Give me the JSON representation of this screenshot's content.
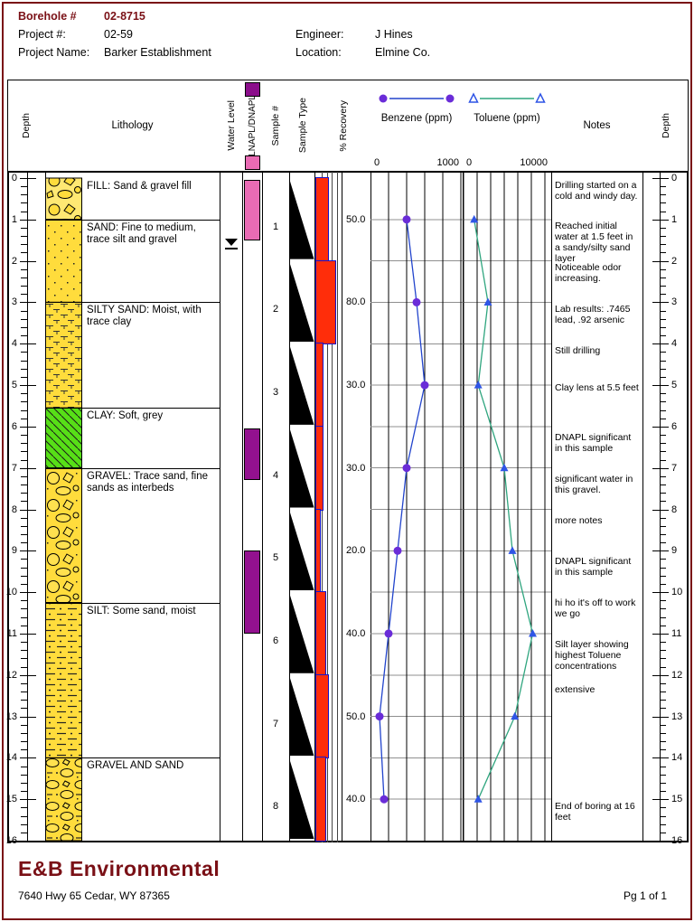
{
  "header": {
    "borehole_label": "Borehole #",
    "borehole_value": "02-8715",
    "project_num_label": "Project #:",
    "project_num_value": "02-59",
    "project_name_label": "Project Name:",
    "project_name_value": "Barker Establishment",
    "engineer_label": "Engineer:",
    "engineer_value": "J Hines",
    "location_label": "Location:",
    "location_value": "Elmine Co."
  },
  "columns": {
    "depth_left": "Depth",
    "lithology": "Lithology",
    "water_level": "Water Level",
    "napl": "LNAPL/DNAPL",
    "sample_num": "Sample #",
    "sample_type": "Sample Type",
    "recovery": "% Recovery",
    "benzene": {
      "name": "Benzene (ppm)",
      "min": "0",
      "max": "1000"
    },
    "toluene": {
      "name": "Toluene (ppm)",
      "min": "0",
      "max": "10000"
    },
    "notes": "Notes",
    "depth_right": "Depth"
  },
  "depth_axis": {
    "min_ft": 0,
    "max_ft": 16,
    "major_tick_ft": 1,
    "minor_tick_ft": 0.2,
    "tick_labels": [
      "0",
      "1",
      "2",
      "3",
      "4",
      "5",
      "6",
      "7",
      "8",
      "9",
      "10",
      "11",
      "12",
      "13",
      "14",
      "15",
      "16"
    ]
  },
  "lithology_layers": [
    {
      "top_ft": 0,
      "bottom_ft": 1,
      "pattern": "fill",
      "label": "FILL: Sand & gravel fill"
    },
    {
      "top_ft": 1,
      "bottom_ft": 3,
      "pattern": "sand",
      "label": "SAND: Fine to medium, trace silt and gravel"
    },
    {
      "top_ft": 3,
      "bottom_ft": 5.55,
      "pattern": "siltysand",
      "label": "SILTY SAND: Moist, with trace clay"
    },
    {
      "top_ft": 5.55,
      "bottom_ft": 7,
      "pattern": "clay",
      "label": "CLAY: Soft, grey"
    },
    {
      "top_ft": 7,
      "bottom_ft": 10.25,
      "pattern": "gravel",
      "label": "GRAVEL: Trace sand, fine sands as interbeds"
    },
    {
      "top_ft": 10.25,
      "bottom_ft": 14,
      "pattern": "silt",
      "label": "SILT: Some sand, moist"
    },
    {
      "top_ft": 14,
      "bottom_ft": 16,
      "pattern": "gravelsand",
      "label": "GRAVEL AND SAND"
    }
  ],
  "water_level_depth_ft": 1.55,
  "napl_intervals": [
    {
      "type": "LNAPL",
      "top_ft": 0.05,
      "bottom_ft": 1.5
    },
    {
      "type": "DNAPL",
      "top_ft": 6.05,
      "bottom_ft": 7.3
    },
    {
      "type": "DNAPL",
      "top_ft": 9.0,
      "bottom_ft": 11.0
    }
  ],
  "samples": [
    {
      "num": "1",
      "top_ft": 0,
      "bottom_ft": 2,
      "recovery_pct": 50,
      "recovery_label": "50.0"
    },
    {
      "num": "2",
      "top_ft": 2,
      "bottom_ft": 4,
      "recovery_pct": 80,
      "recovery_label": "80.0"
    },
    {
      "num": "3",
      "top_ft": 4,
      "bottom_ft": 6,
      "recovery_pct": 30,
      "recovery_label": "30.0"
    },
    {
      "num": "4",
      "top_ft": 6,
      "bottom_ft": 8,
      "recovery_pct": 30,
      "recovery_label": "30.0"
    },
    {
      "num": "5",
      "top_ft": 8,
      "bottom_ft": 10,
      "recovery_pct": 20,
      "recovery_label": "20.0"
    },
    {
      "num": "6",
      "top_ft": 10,
      "bottom_ft": 12,
      "recovery_pct": 40,
      "recovery_label": "40.0"
    },
    {
      "num": "7",
      "top_ft": 12,
      "bottom_ft": 14,
      "recovery_pct": 50,
      "recovery_label": "50.0"
    },
    {
      "num": "8",
      "top_ft": 14,
      "bottom_ft": 16,
      "recovery_pct": 40,
      "recovery_label": "40.0"
    }
  ],
  "notes": [
    {
      "depth_ft": 0.1,
      "text": "Drilling started on a cold and windy day."
    },
    {
      "depth_ft": 1.1,
      "text": "Reached initial water at 1.5 feet in a sandy/silty sand layer"
    },
    {
      "depth_ft": 2.1,
      "text": "Noticeable odor increasing."
    },
    {
      "depth_ft": 3.1,
      "text": "Lab results: .7465 lead, .92 arsenic"
    },
    {
      "depth_ft": 4.1,
      "text": "Still drilling"
    },
    {
      "depth_ft": 5.0,
      "text": "Clay lens at 5.5 feet"
    },
    {
      "depth_ft": 6.2,
      "text": "DNAPL significant in this sample"
    },
    {
      "depth_ft": 7.2,
      "text": "significant water in this gravel."
    },
    {
      "depth_ft": 8.2,
      "text": "more notes"
    },
    {
      "depth_ft": 9.2,
      "text": "DNAPL significant in this sample"
    },
    {
      "depth_ft": 10.2,
      "text": "hi ho it's off to work we go"
    },
    {
      "depth_ft": 11.2,
      "text": "Silt layer showing highest Toluene concentrations"
    },
    {
      "depth_ft": 12.3,
      "text": "extensive"
    },
    {
      "depth_ft": 15.1,
      "text": "End of boring at 16 feet"
    }
  ],
  "chart_data": [
    {
      "type": "line",
      "title": "Benzene (ppm)",
      "orientation": "depth-profile",
      "depths_ft": [
        1,
        3,
        5,
        7,
        9,
        11,
        13,
        15
      ],
      "values_ppm": [
        400,
        510,
        600,
        400,
        300,
        200,
        100,
        150
      ],
      "axis_range": [
        0,
        1000
      ],
      "marker": "circle",
      "grid": true
    },
    {
      "type": "line",
      "title": "Toluene (ppm)",
      "orientation": "depth-profile",
      "depths_ft": [
        1,
        3,
        5,
        7,
        9,
        11,
        13,
        15
      ],
      "values_ppm": [
        1300,
        3000,
        1800,
        5000,
        6000,
        8500,
        6300,
        1800
      ],
      "axis_range": [
        0,
        10000
      ],
      "marker": "triangle",
      "grid": true
    },
    {
      "type": "bar",
      "title": "% Recovery",
      "orientation": "depth-profile",
      "depth_intervals_ft": [
        [
          0,
          2
        ],
        [
          2,
          4
        ],
        [
          4,
          6
        ],
        [
          6,
          8
        ],
        [
          8,
          10
        ],
        [
          10,
          12
        ],
        [
          12,
          14
        ],
        [
          14,
          16
        ]
      ],
      "values_pct": [
        50,
        80,
        30,
        30,
        20,
        40,
        50,
        40
      ],
      "axis_range": [
        0,
        100
      ]
    }
  ],
  "colors": {
    "accent_maroon": "#7a1016",
    "sand_yellow": "#ffdc3c",
    "fill_yellow_light": "#ffe873",
    "clay_green": "#57df17",
    "recovery_red": "#ff2d0a",
    "recovery_border_blue": "#1414cc",
    "lnapl_pink": "#e96bb4",
    "dnapl_purple": "#93118f",
    "benzene_marker": "#6a2cd8",
    "benzene_line": "#2244cc",
    "toluene_marker": "#2f55e6",
    "toluene_line": "#2fa57e",
    "grid_gray": "#8f8f8f"
  },
  "footer": {
    "company": "E&B Environmental",
    "address": "7640 Hwy 65  Cedar, WY  87365",
    "page": "Pg 1 of 1"
  }
}
